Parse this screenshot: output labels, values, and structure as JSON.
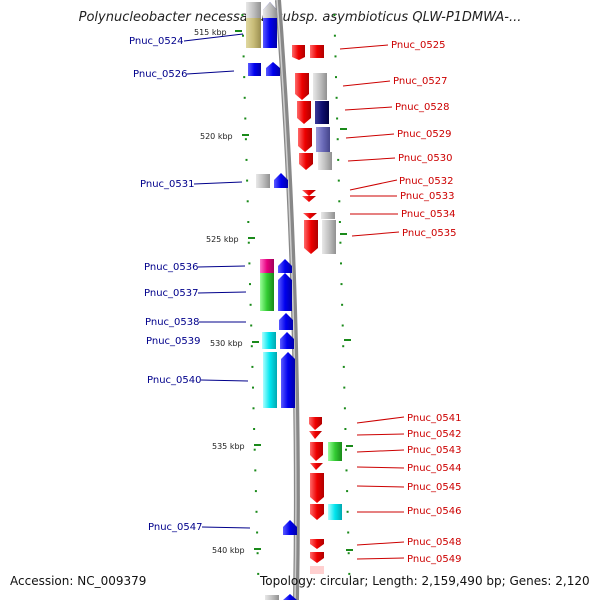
{
  "title": "Polynucleobacter necessarius subsp. asymbioticus QLW-P1DMWA-...",
  "accession": "Accession: NC_009379",
  "topology": "Topology: circular; Length: 2,159,490 bp; Genes: 2,120",
  "colors": {
    "backbone": "#888888",
    "forward_gene": "#0000ee",
    "reverse_gene": "#ee0000",
    "left_label": "#00008b",
    "right_label": "#cc0000",
    "tick": "#1a8a1a"
  },
  "kbp_ticks": [
    "515 kbp",
    "520 kbp",
    "525 kbp",
    "530 kbp",
    "535 kbp",
    "540 kbp"
  ],
  "left_labels": [
    "Pnuc_0524",
    "Pnuc_0526",
    "Pnuc_0531",
    "Pnuc_0536",
    "Pnuc_0537",
    "Pnuc_0538",
    "Pnuc_0539",
    "Pnuc_0540",
    "Pnuc_0547"
  ],
  "right_labels": [
    "Pnuc_0525",
    "Pnuc_0527",
    "Pnuc_0528",
    "Pnuc_0529",
    "Pnuc_0530",
    "Pnuc_0532",
    "Pnuc_0533",
    "Pnuc_0534",
    "Pnuc_0535",
    "Pnuc_0541",
    "Pnuc_0542",
    "Pnuc_0543",
    "Pnuc_0544",
    "Pnuc_0545",
    "Pnuc_0546",
    "Pnuc_0548",
    "Pnuc_0549"
  ]
}
